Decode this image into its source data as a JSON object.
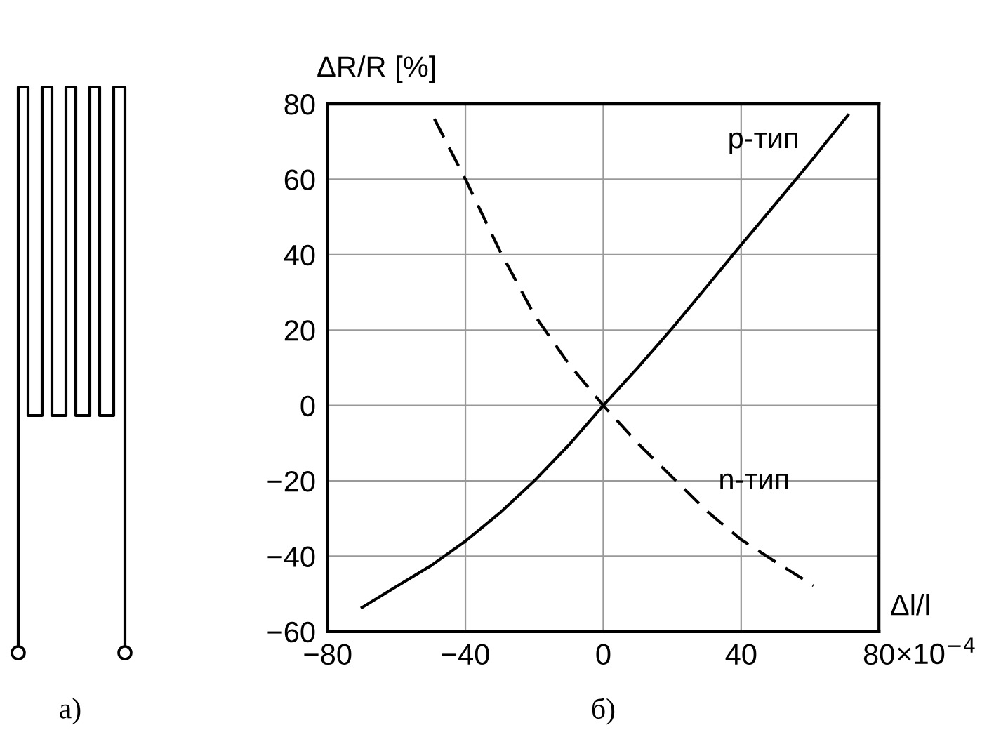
{
  "chart_data": {
    "type": "line",
    "xlabel": "Δl/l",
    "ylabel": "ΔR/R [%]",
    "xlim": [
      -80,
      80
    ],
    "ylim": [
      -60,
      80
    ],
    "xticks": [
      {
        "value": -80,
        "label": "−80"
      },
      {
        "value": -40,
        "label": "−40"
      },
      0,
      40,
      80
    ],
    "yticks": [
      {
        "value": -60,
        "label": "−60"
      },
      {
        "value": -40,
        "label": "−40"
      },
      {
        "value": -20,
        "label": "−20"
      },
      0,
      20,
      40,
      60,
      80
    ],
    "grid": true,
    "series": [
      {
        "name": "p-тип",
        "color": "#000000",
        "line_style": "solid",
        "x": [
          -70,
          -60,
          -50,
          -40,
          -30,
          -20,
          -10,
          0,
          10,
          20,
          30,
          40,
          50,
          60,
          71
        ],
        "values": [
          -53.6,
          -48,
          -42.5,
          -36,
          -28.5,
          -20,
          -10.5,
          0,
          10,
          20.5,
          31.5,
          42.6,
          53.5,
          64.5,
          77
        ]
      },
      {
        "name": "n-тип",
        "color": "#000000",
        "line_style": "dashed",
        "x": [
          -49,
          -40,
          -30,
          -20,
          -10,
          0,
          10,
          20,
          30,
          40,
          50,
          61
        ],
        "values": [
          76,
          60,
          41,
          24,
          11,
          0,
          -10,
          -19,
          -28,
          -35.6,
          -41.5,
          -47.8
        ]
      }
    ],
    "annotations": [
      "×10$^{−4}$",
      "а)",
      "б)"
    ]
  }
}
